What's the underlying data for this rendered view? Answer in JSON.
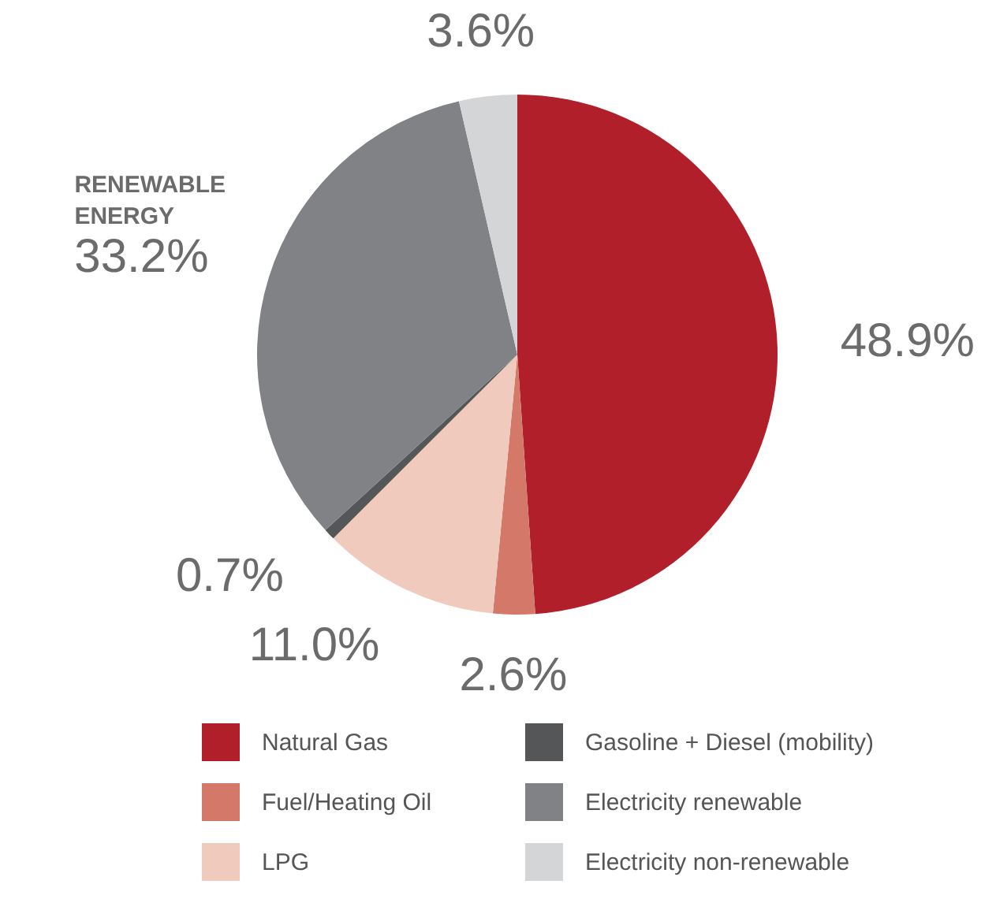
{
  "chart_data": {
    "type": "pie",
    "categories": [
      "Natural Gas",
      "Fuel/Heating Oil",
      "LPG",
      "Gasoline + Diesel (mobility)",
      "Electricity renewable",
      "Electricity non-renewable"
    ],
    "values": [
      48.9,
      2.6,
      11.0,
      0.7,
      33.2,
      3.6
    ],
    "colors": [
      "#b01f2a",
      "#d4786a",
      "#efcabd",
      "#555657",
      "#818285",
      "#d4d5d7"
    ],
    "value_labels": [
      "48.9%",
      "2.6%",
      "11.0%",
      "0.7%",
      "33.2%",
      "3.6%"
    ],
    "annotations": [
      "RENEWABLE ENERGY"
    ],
    "legend": "bottom"
  }
}
